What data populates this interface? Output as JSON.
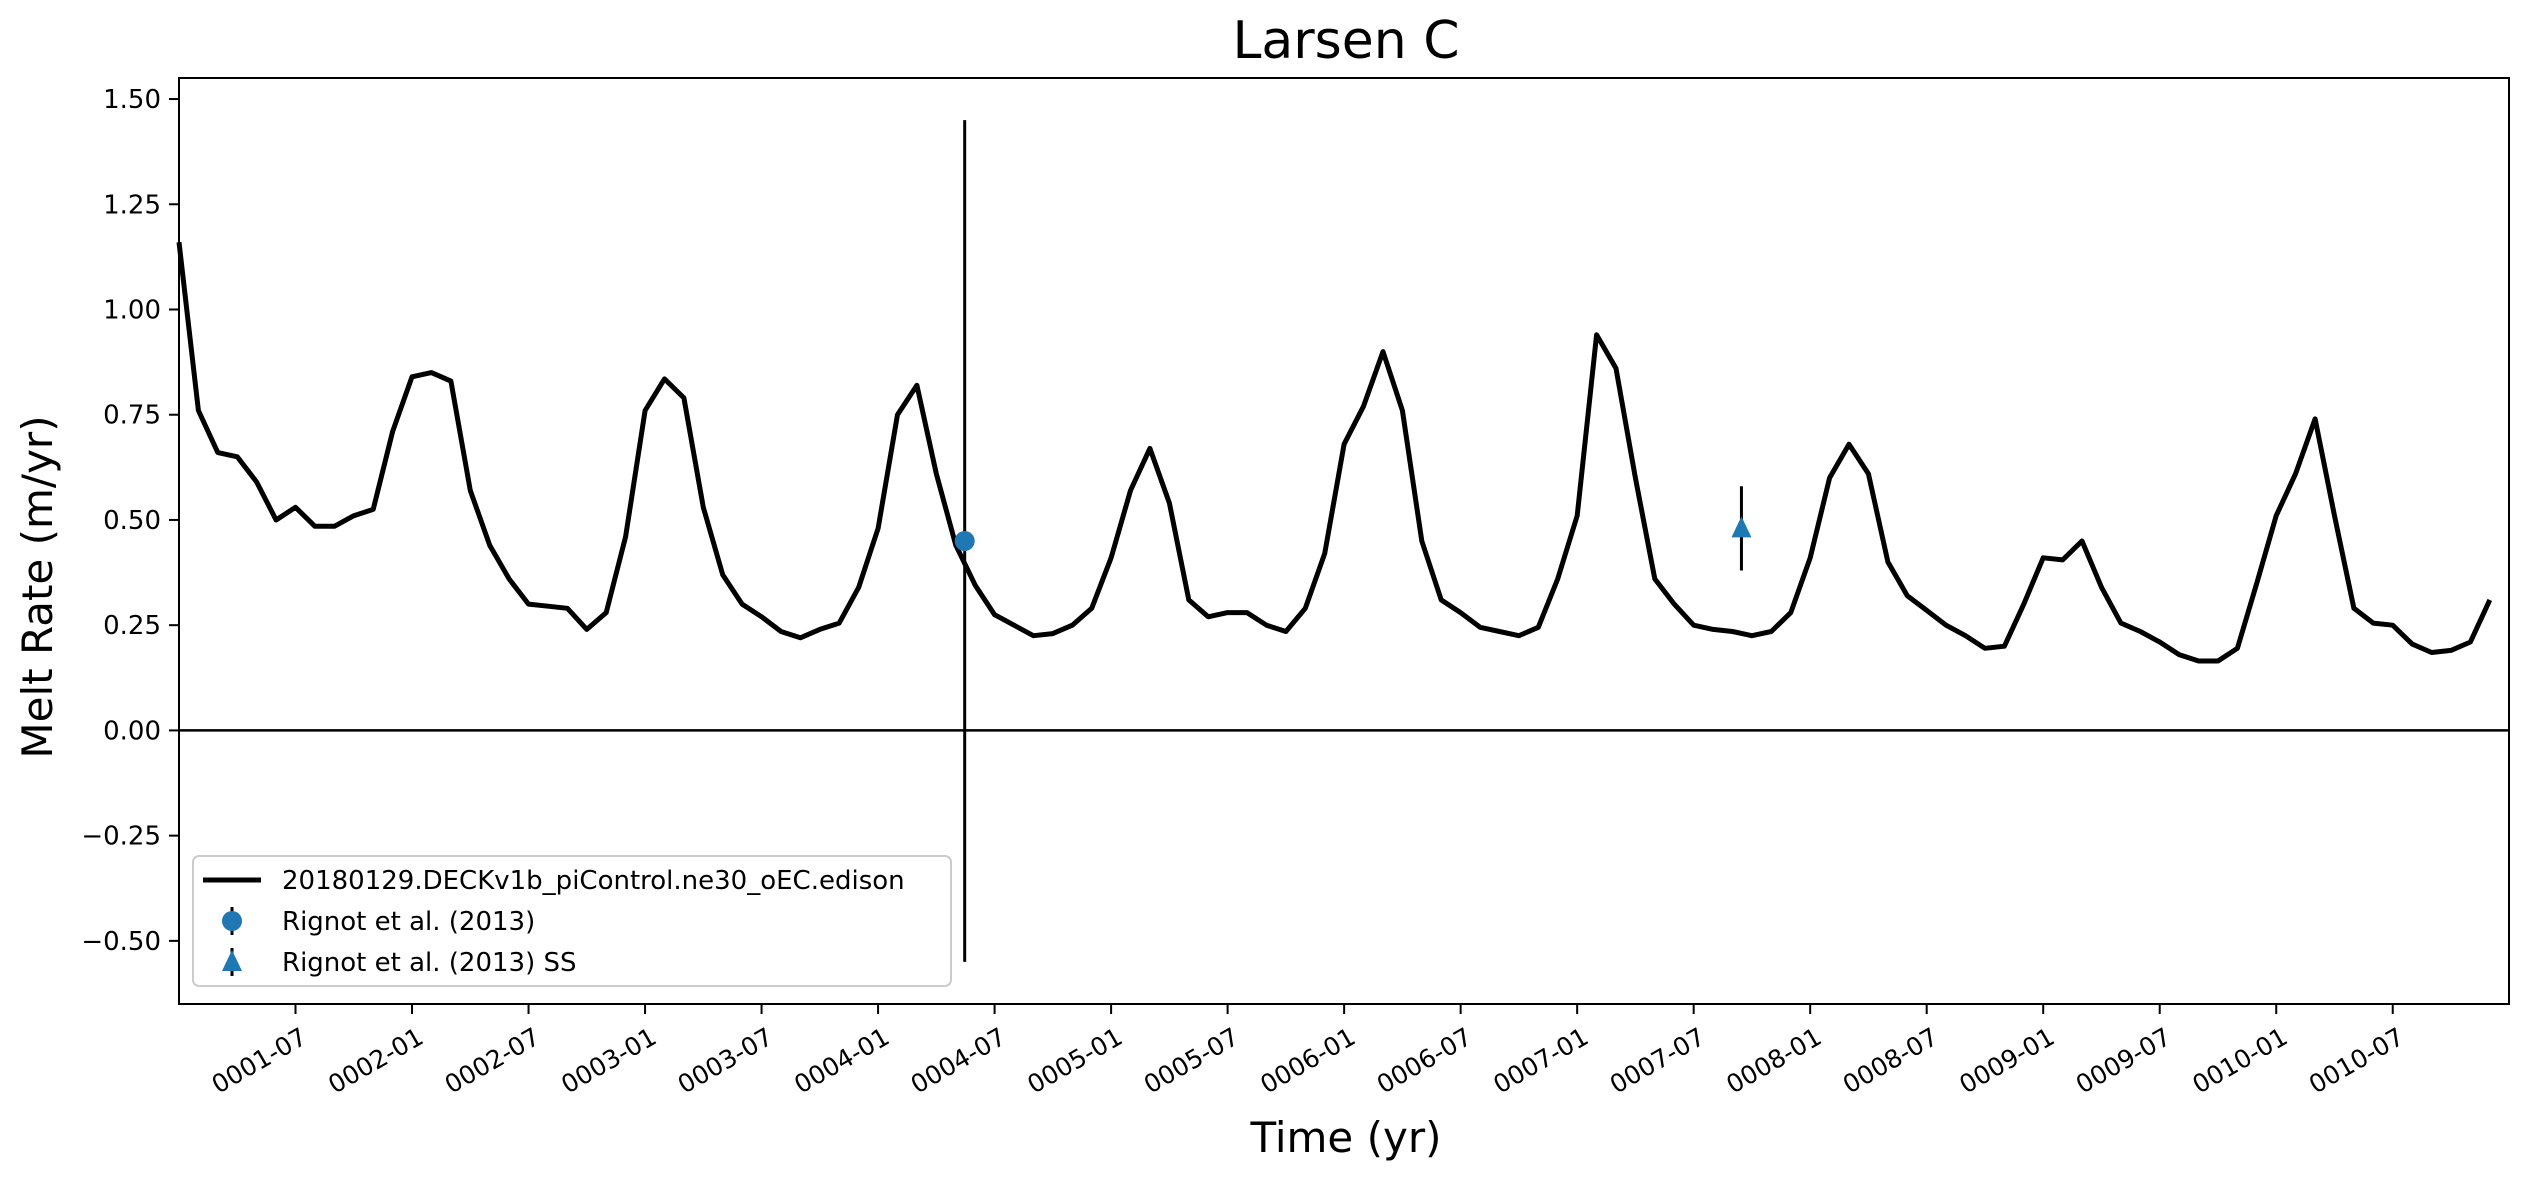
{
  "chart_data": {
    "type": "line",
    "title": "Larsen C",
    "xlabel": "Time (yr)",
    "ylabel": "Melt Rate (m/yr)",
    "xlim": [
      "0001-01-01",
      "0010-12-31"
    ],
    "ylim": [
      -0.65,
      1.55
    ],
    "grid": false,
    "legend_position": "lower-left",
    "x_tick_labels": [
      "0001-07",
      "0002-01",
      "0002-07",
      "0003-01",
      "0003-07",
      "0004-01",
      "0004-07",
      "0005-01",
      "0005-07",
      "0006-01",
      "0006-07",
      "0007-01",
      "0007-07",
      "0008-01",
      "0008-07",
      "0009-01",
      "0009-07",
      "0010-01",
      "0010-07"
    ],
    "y_tick_labels": [
      "1.50",
      "1.25",
      "1.00",
      "0.75",
      "0.50",
      "0.25",
      "0.00",
      "−0.25",
      "−0.50"
    ],
    "y_tick_values": [
      1.5,
      1.25,
      1.0,
      0.75,
      0.5,
      0.25,
      0.0,
      -0.25,
      -0.5
    ],
    "reference_line_y": 0.0,
    "series": [
      {
        "name": "20180129.DECKv1b_piControl.ne30_oEC.edison",
        "kind": "line",
        "color": "#000000",
        "x": [
          "0001-01-01",
          "0001-02-01",
          "0001-03-01",
          "0001-04-01",
          "0001-05-01",
          "0001-06-01",
          "0001-07-01",
          "0001-08-01",
          "0001-09-01",
          "0001-10-01",
          "0001-11-01",
          "0001-12-01",
          "0002-01-01",
          "0002-02-01",
          "0002-03-01",
          "0002-04-01",
          "0002-05-01",
          "0002-06-01",
          "0002-07-01",
          "0002-08-01",
          "0002-09-01",
          "0002-10-01",
          "0002-11-01",
          "0002-12-01",
          "0003-01-01",
          "0003-02-01",
          "0003-03-01",
          "0003-04-01",
          "0003-05-01",
          "0003-06-01",
          "0003-07-01",
          "0003-08-01",
          "0003-09-01",
          "0003-10-01",
          "0003-11-01",
          "0003-12-01",
          "0004-01-01",
          "0004-02-01",
          "0004-03-01",
          "0004-04-01",
          "0004-05-01",
          "0004-06-01",
          "0004-07-01",
          "0004-08-01",
          "0004-09-01",
          "0004-10-01",
          "0004-11-01",
          "0004-12-01",
          "0005-01-01",
          "0005-02-01",
          "0005-03-01",
          "0005-04-01",
          "0005-05-01",
          "0005-06-01",
          "0005-07-01",
          "0005-08-01",
          "0005-09-01",
          "0005-10-01",
          "0005-11-01",
          "0005-12-01",
          "0006-01-01",
          "0006-02-01",
          "0006-03-01",
          "0006-04-01",
          "0006-05-01",
          "0006-06-01",
          "0006-07-01",
          "0006-08-01",
          "0006-09-01",
          "0006-10-01",
          "0006-11-01",
          "0006-12-01",
          "0007-01-01",
          "0007-02-01",
          "0007-03-01",
          "0007-04-01",
          "0007-05-01",
          "0007-06-01",
          "0007-07-01",
          "0007-08-01",
          "0007-09-01",
          "0007-10-01",
          "0007-11-01",
          "0007-12-01",
          "0008-01-01",
          "0008-02-01",
          "0008-03-01",
          "0008-04-01",
          "0008-05-01",
          "0008-06-01",
          "0008-07-01",
          "0008-08-01",
          "0008-09-01",
          "0008-10-01",
          "0008-11-01",
          "0008-12-01",
          "0009-01-01",
          "0009-02-01",
          "0009-03-01",
          "0009-04-01",
          "0009-05-01",
          "0009-06-01",
          "0009-07-01",
          "0009-08-01",
          "0009-09-01",
          "0009-10-01",
          "0009-11-01",
          "0009-12-01",
          "0010-01-01",
          "0010-02-01",
          "0010-03-01",
          "0010-04-01",
          "0010-05-01",
          "0010-06-01",
          "0010-07-01",
          "0010-08-01",
          "0010-09-01",
          "0010-10-01",
          "0010-11-01",
          "0010-12-01"
        ],
        "y": [
          1.16,
          0.76,
          0.66,
          0.65,
          0.59,
          0.5,
          0.53,
          0.485,
          0.485,
          0.51,
          0.525,
          0.71,
          0.84,
          0.85,
          0.83,
          0.57,
          0.44,
          0.36,
          0.3,
          0.295,
          0.29,
          0.24,
          0.28,
          0.46,
          0.76,
          0.835,
          0.79,
          0.53,
          0.37,
          0.3,
          0.27,
          0.235,
          0.22,
          0.24,
          0.255,
          0.34,
          0.48,
          0.75,
          0.82,
          0.61,
          0.44,
          0.345,
          0.275,
          0.25,
          0.225,
          0.23,
          0.25,
          0.29,
          0.41,
          0.57,
          0.67,
          0.54,
          0.31,
          0.27,
          0.28,
          0.28,
          0.25,
          0.235,
          0.29,
          0.42,
          0.68,
          0.77,
          0.9,
          0.76,
          0.45,
          0.31,
          0.28,
          0.245,
          0.235,
          0.225,
          0.245,
          0.36,
          0.51,
          0.94,
          0.86,
          0.6,
          0.36,
          0.3,
          0.25,
          0.24,
          0.235,
          0.225,
          0.235,
          0.28,
          0.41,
          0.6,
          0.68,
          0.61,
          0.4,
          0.32,
          0.285,
          0.25,
          0.225,
          0.195,
          0.2,
          0.3,
          0.41,
          0.405,
          0.45,
          0.34,
          0.255,
          0.235,
          0.21,
          0.18,
          0.165,
          0.165,
          0.195,
          0.35,
          0.51,
          0.61,
          0.74,
          0.51,
          0.29,
          0.255,
          0.25,
          0.205,
          0.185,
          0.19,
          0.21,
          0.31
        ]
      },
      {
        "name": "Rignot et al. (2013)",
        "kind": "errorbar",
        "marker": "circle",
        "color": "#1f77b4",
        "x": "0004-05-15",
        "y": 0.45,
        "yerr": 1.0
      },
      {
        "name": "Rignot et al. (2013) SS",
        "kind": "errorbar",
        "marker": "triangle",
        "color": "#1f77b4",
        "x": "0007-09-15",
        "y": 0.48,
        "yerr": 0.1
      }
    ]
  }
}
